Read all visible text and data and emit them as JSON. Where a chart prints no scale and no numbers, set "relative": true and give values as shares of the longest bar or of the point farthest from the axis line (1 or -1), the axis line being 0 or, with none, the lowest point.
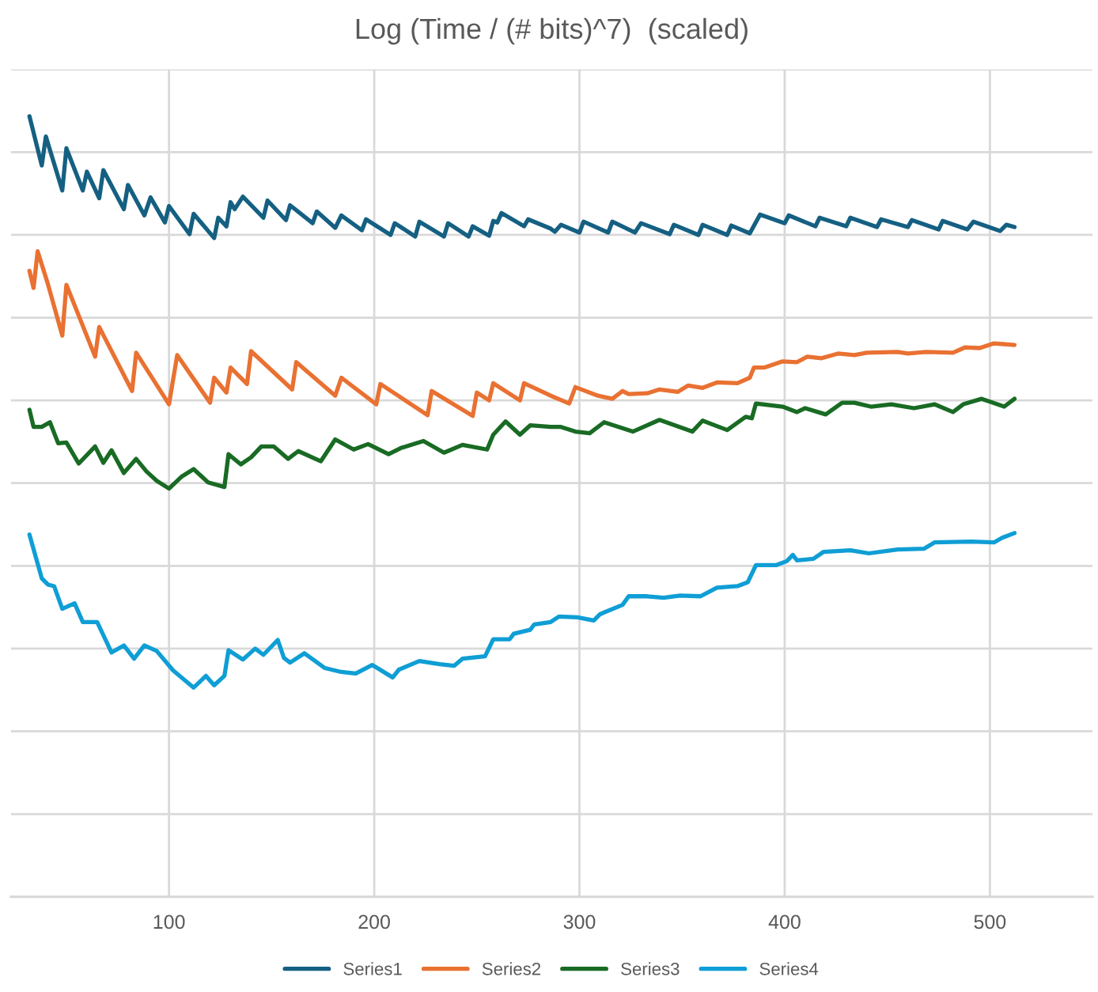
{
  "chart_data": {
    "type": "line",
    "title": "Log (Time / (# bits)^7)  (scaled)",
    "relative": true,
    "grid": true,
    "legend": "bottom",
    "marker": "none",
    "line_style": "solid",
    "xlim": [
      23,
      550
    ],
    "xticks": [
      100,
      200,
      300,
      400,
      500
    ],
    "series": [
      {
        "name": "Series1",
        "color": "#156082",
        "x": [
          32,
          38,
          40,
          48,
          50,
          58,
          60,
          66,
          68,
          78,
          80,
          88,
          91,
          98,
          100,
          110,
          112,
          122,
          124,
          128,
          130,
          132,
          136,
          146,
          148,
          157,
          159,
          170,
          172,
          181,
          184,
          194,
          196,
          208,
          210,
          220,
          222,
          234,
          236,
          246,
          248,
          256,
          258,
          260,
          262,
          273,
          275,
          286,
          288,
          291,
          300,
          302,
          314,
          316,
          327,
          330,
          344,
          346,
          358,
          360,
          372,
          374,
          383,
          388,
          400,
          402,
          415,
          417,
          430,
          432,
          445,
          447,
          460,
          462,
          475,
          477,
          489,
          492,
          505,
          508,
          512
        ],
        "values": [
          1.0,
          0.937,
          0.974,
          0.905,
          0.959,
          0.905,
          0.929,
          0.895,
          0.931,
          0.881,
          0.912,
          0.873,
          0.896,
          0.864,
          0.885,
          0.849,
          0.875,
          0.844,
          0.87,
          0.859,
          0.89,
          0.881,
          0.897,
          0.87,
          0.892,
          0.867,
          0.886,
          0.863,
          0.878,
          0.857,
          0.873,
          0.854,
          0.868,
          0.848,
          0.863,
          0.846,
          0.865,
          0.846,
          0.863,
          0.846,
          0.859,
          0.847,
          0.866,
          0.864,
          0.876,
          0.859,
          0.868,
          0.856,
          0.852,
          0.861,
          0.851,
          0.865,
          0.851,
          0.865,
          0.851,
          0.863,
          0.849,
          0.861,
          0.848,
          0.861,
          0.848,
          0.86,
          0.85,
          0.874,
          0.863,
          0.873,
          0.859,
          0.87,
          0.859,
          0.87,
          0.858,
          0.868,
          0.858,
          0.867,
          0.855,
          0.866,
          0.855,
          0.865,
          0.853,
          0.861,
          0.858
        ]
      },
      {
        "name": "Series2",
        "color": "#e97132",
        "x": [
          32,
          34,
          36,
          41,
          48,
          50,
          64,
          66,
          82,
          84,
          100,
          104,
          120,
          122,
          128,
          130,
          138,
          140,
          160,
          162,
          181,
          184,
          201,
          203,
          226,
          228,
          248,
          250,
          256,
          258,
          271,
          273,
          286,
          295,
          298,
          309,
          316,
          321,
          324,
          333,
          339,
          348,
          353,
          360,
          367,
          377,
          383,
          385,
          390,
          399,
          406,
          411,
          418,
          426,
          434,
          440,
          455,
          460,
          469,
          482,
          488,
          495,
          502,
          512
        ],
        "values": [
          0.802,
          0.78,
          0.827,
          0.785,
          0.719,
          0.784,
          0.692,
          0.73,
          0.648,
          0.697,
          0.631,
          0.694,
          0.633,
          0.665,
          0.646,
          0.678,
          0.657,
          0.699,
          0.65,
          0.685,
          0.642,
          0.665,
          0.631,
          0.657,
          0.617,
          0.648,
          0.616,
          0.646,
          0.636,
          0.658,
          0.636,
          0.658,
          0.642,
          0.632,
          0.653,
          0.642,
          0.638,
          0.648,
          0.644,
          0.645,
          0.65,
          0.647,
          0.655,
          0.652,
          0.659,
          0.658,
          0.665,
          0.678,
          0.678,
          0.686,
          0.685,
          0.692,
          0.69,
          0.696,
          0.694,
          0.697,
          0.698,
          0.696,
          0.698,
          0.697,
          0.704,
          0.703,
          0.709,
          0.707
        ]
      },
      {
        "name": "Series3",
        "color": "#196b24",
        "x": [
          32,
          34,
          38,
          42,
          46,
          50,
          56,
          64,
          68,
          72,
          78,
          84,
          89,
          94,
          100,
          106,
          112,
          119,
          127,
          129,
          135,
          140,
          145,
          151,
          158,
          163,
          174,
          181,
          190,
          197,
          207,
          213,
          224,
          234,
          243,
          255,
          258,
          264,
          271,
          276,
          286,
          291,
          298,
          305,
          312,
          326,
          339,
          355,
          360,
          372,
          381,
          384,
          386,
          399,
          406,
          410,
          420,
          428,
          434,
          442,
          452,
          463,
          473,
          482,
          487,
          496,
          507,
          512
        ],
        "values": [
          0.624,
          0.602,
          0.602,
          0.608,
          0.581,
          0.582,
          0.555,
          0.577,
          0.556,
          0.572,
          0.543,
          0.561,
          0.545,
          0.533,
          0.523,
          0.538,
          0.548,
          0.531,
          0.525,
          0.567,
          0.554,
          0.563,
          0.577,
          0.577,
          0.561,
          0.571,
          0.558,
          0.586,
          0.573,
          0.58,
          0.567,
          0.575,
          0.584,
          0.569,
          0.579,
          0.573,
          0.592,
          0.609,
          0.592,
          0.604,
          0.602,
          0.602,
          0.596,
          0.594,
          0.608,
          0.596,
          0.611,
          0.596,
          0.61,
          0.598,
          0.615,
          0.613,
          0.632,
          0.628,
          0.621,
          0.626,
          0.618,
          0.633,
          0.633,
          0.628,
          0.631,
          0.626,
          0.631,
          0.621,
          0.631,
          0.638,
          0.628,
          0.638
        ]
      },
      {
        "name": "Series4",
        "color": "#0f9ed5",
        "x": [
          32,
          38,
          41,
          44,
          48,
          54,
          58,
          65,
          72,
          78,
          83,
          88,
          94,
          102,
          112,
          118,
          122,
          127,
          129,
          136,
          142,
          146,
          153,
          156,
          159,
          166,
          176,
          184,
          191,
          199,
          209,
          212,
          222,
          232,
          239,
          243,
          254,
          258,
          266,
          268,
          276,
          278,
          286,
          290,
          299,
          307,
          310,
          321,
          324,
          333,
          341,
          349,
          359,
          367,
          377,
          382,
          386,
          396,
          401,
          404,
          406,
          414,
          419,
          432,
          441,
          455,
          468,
          473,
          491,
          502,
          506,
          512
        ],
        "values": [
          0.464,
          0.408,
          0.4,
          0.398,
          0.369,
          0.376,
          0.352,
          0.352,
          0.313,
          0.322,
          0.305,
          0.322,
          0.315,
          0.29,
          0.268,
          0.283,
          0.271,
          0.283,
          0.316,
          0.304,
          0.318,
          0.31,
          0.329,
          0.306,
          0.3,
          0.312,
          0.293,
          0.288,
          0.286,
          0.297,
          0.281,
          0.291,
          0.302,
          0.298,
          0.296,
          0.305,
          0.308,
          0.33,
          0.33,
          0.337,
          0.342,
          0.349,
          0.352,
          0.359,
          0.358,
          0.354,
          0.362,
          0.374,
          0.385,
          0.385,
          0.383,
          0.386,
          0.385,
          0.396,
          0.398,
          0.403,
          0.425,
          0.425,
          0.43,
          0.438,
          0.431,
          0.433,
          0.442,
          0.444,
          0.44,
          0.445,
          0.446,
          0.454,
          0.455,
          0.454,
          0.46,
          0.466
        ]
      }
    ]
  }
}
